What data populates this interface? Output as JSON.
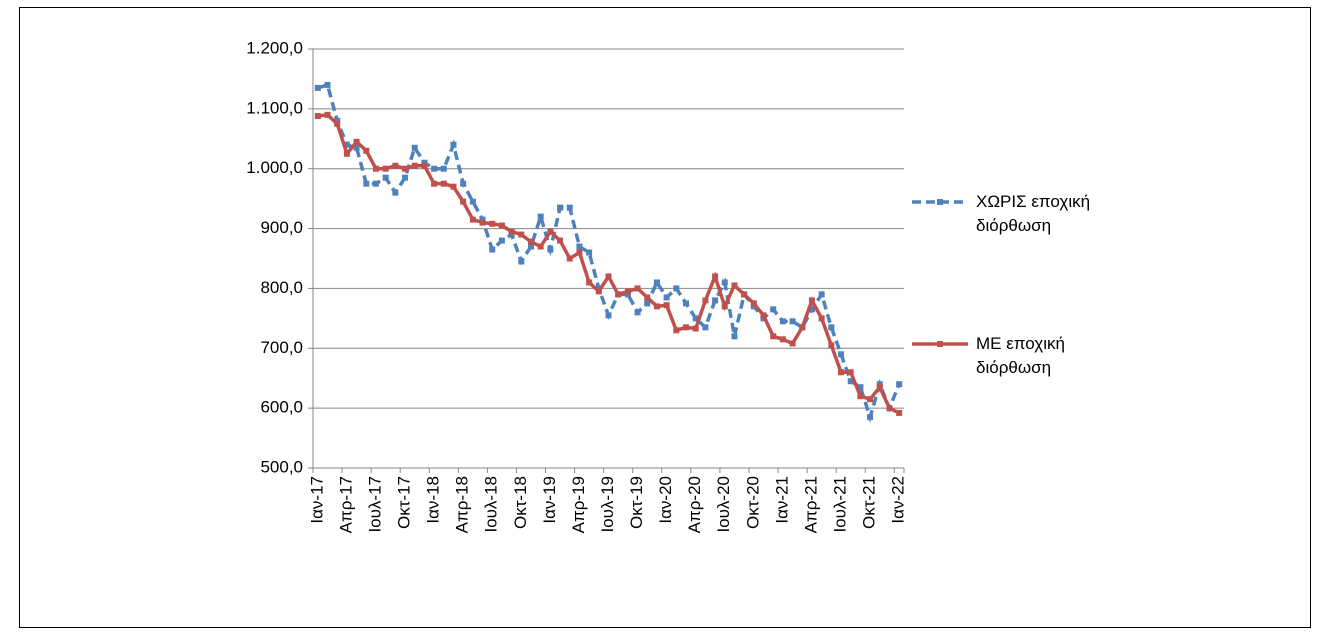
{
  "chart_data": {
    "type": "line",
    "categories": [
      "Ιαν-17",
      null,
      null,
      "Απρ-17",
      null,
      null,
      "Ιουλ-17",
      null,
      null,
      "Οκτ-17",
      null,
      null,
      "Ιαν-18",
      null,
      null,
      "Απρ-18",
      null,
      null,
      "Ιουλ-18",
      null,
      null,
      "Οκτ-18",
      null,
      null,
      "Ιαν-19",
      null,
      null,
      "Απρ-19",
      null,
      null,
      "Ιουλ-19",
      null,
      null,
      "Οκτ-19",
      null,
      null,
      "Ιαν-20",
      null,
      null,
      "Απρ-20",
      null,
      null,
      "Ιουλ-20",
      null,
      null,
      "Οκτ-20",
      null,
      null,
      "Ιαν-21",
      null,
      null,
      "Απρ-21",
      null,
      null,
      "Ιουλ-21",
      null,
      null,
      "Οκτ-21",
      null,
      null,
      "Ιαν-22"
    ],
    "series": [
      {
        "name": "ΧΩΡΙΣ εποχική διόρθωση",
        "color": "#4f81bd",
        "dashed": true,
        "values": [
          1135,
          1140,
          1080,
          1040,
          1035,
          975,
          975,
          985,
          960,
          985,
          1035,
          1010,
          1000,
          1000,
          1040,
          975,
          945,
          915,
          865,
          880,
          890,
          845,
          870,
          920,
          865,
          935,
          935,
          870,
          860,
          800,
          755,
          790,
          790,
          760,
          775,
          810,
          785,
          800,
          775,
          750,
          735,
          780,
          810,
          720,
          790,
          770,
          750,
          765,
          745,
          745,
          735,
          765,
          790,
          735,
          690,
          645,
          635,
          585,
          640,
          600,
          640
        ]
      },
      {
        "name": "ΜΕ εποχική διόρθωση",
        "color": "#c0504d",
        "dashed": false,
        "values": [
          1088,
          1090,
          1075,
          1025,
          1045,
          1030,
          1000,
          1000,
          1005,
          1000,
          1005,
          1005,
          975,
          975,
          970,
          945,
          915,
          910,
          908,
          905,
          895,
          890,
          878,
          870,
          895,
          880,
          850,
          860,
          810,
          795,
          820,
          790,
          795,
          800,
          785,
          770,
          772,
          730,
          735,
          733,
          780,
          820,
          770,
          805,
          790,
          775,
          755,
          720,
          715,
          708,
          735,
          780,
          750,
          705,
          660,
          660,
          620,
          615,
          635,
          600,
          592
        ]
      }
    ],
    "ylim": [
      500,
      1200
    ],
    "yticks": [
      {
        "value": 500,
        "label": "500,0"
      },
      {
        "value": 600,
        "label": "600,0"
      },
      {
        "value": 700,
        "label": "700,0"
      },
      {
        "value": 800,
        "label": "800,0"
      },
      {
        "value": 900,
        "label": "900,0"
      },
      {
        "value": 1000,
        "label": "1.000,0"
      },
      {
        "value": 1100,
        "label": "1.100,0"
      },
      {
        "value": 1200,
        "label": "1.200,0"
      }
    ],
    "grid": true,
    "legend": "right"
  }
}
